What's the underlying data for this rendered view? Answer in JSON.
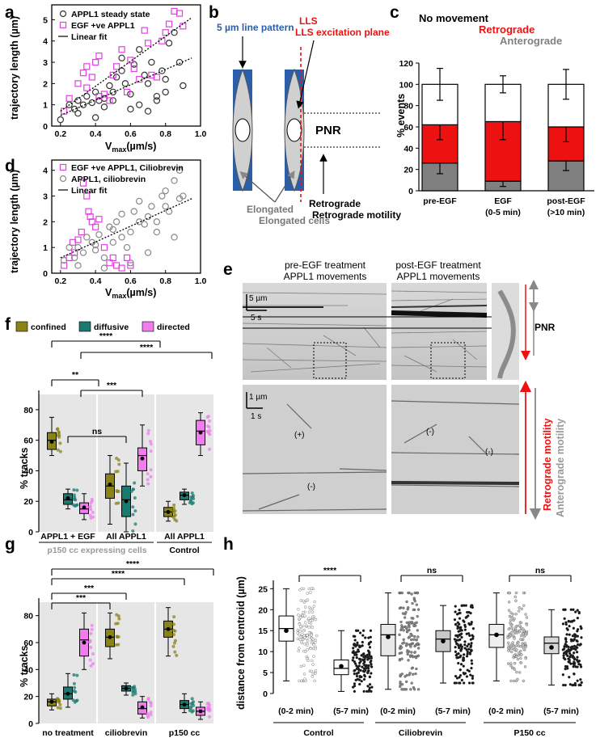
{
  "colors": {
    "magenta": "#e040e0",
    "pink": "#f07cf0",
    "olive": "#8a8416",
    "teal": "#1a7a70",
    "red": "#ee1111",
    "grey": "#808080",
    "blue": "#2b5ea8"
  },
  "panel_labels": {
    "a": "a",
    "b": "b",
    "c": "c",
    "d": "d",
    "e": "e",
    "f": "f",
    "g": "g",
    "h": "h"
  },
  "panel_a": {
    "xlabel": "V",
    "xlabel_sub": "max",
    "xlabel_unit": "(µm/s)",
    "ylabel": "trajectory length (µm)",
    "legend": [
      "APPL1 steady state",
      "EGF +ve APPL1",
      "Linear fit"
    ],
    "xticks": [
      "0.2",
      "0.4",
      "0.6",
      "0.8",
      "1.0"
    ],
    "yticks": [
      "0",
      "1",
      "2",
      "3",
      "4",
      "5"
    ]
  },
  "panel_b": {
    "line_pattern": "5 µm line pattern",
    "lls": "LLS excitation plane",
    "pnr": "PNR",
    "elongated": "Elongated cells",
    "retrograde": "Retrograde motility"
  },
  "panel_c": {
    "legend_none": "No movement",
    "legend_retro": "Retrograde",
    "legend_antero": "Anterograde",
    "ylabel": "% events",
    "yticks": [
      "0",
      "20",
      "40",
      "60",
      "80",
      "100",
      "120"
    ]
  },
  "panel_d": {
    "legend": [
      "EGF +ve APPL1, Ciliobrevin",
      "APPL1, ciliobrevin",
      "Linear fit"
    ],
    "ylabel": "trajectory length (µm)",
    "xlabel": "V",
    "xlabel_sub": "max",
    "xlabel_unit": "(µm/s)",
    "xticks": [
      "0.2",
      "0.4",
      "0.6",
      "0.8",
      "1.0"
    ],
    "yticks": [
      "0",
      "1",
      "2",
      "3",
      "4"
    ]
  },
  "panel_e": {
    "title_left": "pre-EGF treatment",
    "title_left2": "APPL1 movements",
    "title_right": "post-EGF treatment",
    "title_right2": "APPL1 movements",
    "scale_um": "5 µm",
    "scale_s": "5 s",
    "scale_um2": "1 µm",
    "scale_s2": "1 s",
    "pnr": "PNR",
    "plus": "(+)",
    "minus": "(-)",
    "retro": "Retrograde motility",
    "antero": "Anterograde motility"
  },
  "panel_f": {
    "legend": [
      "confined",
      "diffusive",
      "directed"
    ],
    "ylabel": "% tracks",
    "yticks": [
      "0",
      "20",
      "40",
      "60",
      "80"
    ],
    "groups": [
      "APPL1 + EGF",
      "All APPL1",
      "All APPL1"
    ],
    "subtitle": "p150 cc expressing cells",
    "control": "Control",
    "sig": [
      "****",
      "****",
      "**",
      "***",
      "ns"
    ]
  },
  "panel_g": {
    "ylabel": "% tracks",
    "yticks": [
      "0",
      "20",
      "40",
      "60",
      "80"
    ],
    "groups": [
      "no treatment",
      "ciliobrevin",
      "p150 cc"
    ],
    "sig": [
      "****",
      "****",
      "***",
      "***"
    ]
  },
  "panel_h": {
    "ylabel": "distance from centroid (µm)",
    "yticks": [
      "0",
      "5",
      "10",
      "15",
      "20",
      "25"
    ],
    "timepoints": [
      "(0-2 min)",
      "(5-7 min)"
    ],
    "groups": [
      "Control",
      "Ciliobrevin",
      "P150 cc"
    ],
    "sig": [
      "****",
      "ns",
      "ns"
    ]
  },
  "chart_data": [
    {
      "type": "scatter",
      "panel": "a",
      "xlabel": "Vmax (µm/s)",
      "ylabel": "trajectory length (µm)",
      "xlim": [
        0.15,
        1.0
      ],
      "ylim": [
        0,
        5.7
      ],
      "series": [
        {
          "name": "APPL1 steady state",
          "x": [
            0.2,
            0.25,
            0.28,
            0.3,
            0.33,
            0.35,
            0.38,
            0.4,
            0.42,
            0.45,
            0.48,
            0.5,
            0.52,
            0.55,
            0.57,
            0.6,
            0.62,
            0.65,
            0.68,
            0.7,
            0.72,
            0.75,
            0.78,
            0.8,
            0.82,
            0.85,
            0.88,
            0.3,
            0.45,
            0.6,
            0.75,
            0.9,
            0.55,
            0.65,
            0.8,
            0.5,
            0.4,
            0.7
          ],
          "y": [
            0.3,
            1.0,
            0.8,
            1.2,
            1.0,
            1.4,
            1.1,
            1.6,
            1.2,
            1.3,
            1.9,
            1.2,
            2.3,
            2.6,
            2.0,
            1.5,
            2.9,
            3.6,
            2.4,
            2.0,
            3.0,
            1.4,
            2.6,
            1.6,
            3.9,
            4.4,
            3.0,
            0.6,
            0.9,
            0.8,
            1.2,
            1.9,
            3.2,
            1.0,
            2.2,
            1.6,
            0.4,
            0.7
          ]
        },
        {
          "name": "EGF +ve APPL1",
          "x": [
            0.22,
            0.25,
            0.3,
            0.33,
            0.35,
            0.38,
            0.4,
            0.42,
            0.45,
            0.48,
            0.5,
            0.55,
            0.58,
            0.6,
            0.62,
            0.65,
            0.68,
            0.7,
            0.75,
            0.78,
            0.8,
            0.82,
            0.85,
            0.88,
            0.9,
            0.35,
            0.42,
            0.52,
            0.72
          ],
          "y": [
            0.7,
            1.3,
            2.0,
            2.5,
            2.8,
            2.3,
            3.0,
            3.3,
            1.5,
            1.2,
            2.4,
            3.6,
            1.6,
            3.1,
            2.7,
            2.2,
            4.5,
            3.9,
            2.3,
            4.0,
            4.4,
            4.8,
            5.4,
            5.3,
            4.7,
            1.8,
            1.4,
            2.8,
            2.4
          ]
        }
      ],
      "fits": [
        {
          "name": "Linear fit",
          "x": [
            0.2,
            0.95
          ],
          "y": [
            0.7,
            5.1
          ]
        },
        {
          "name": "Linear fit",
          "x": [
            0.2,
            0.95
          ],
          "y": [
            0.5,
            3.2
          ]
        }
      ]
    },
    {
      "type": "bar",
      "panel": "c",
      "categories": [
        "pre-EGF",
        "EGF\n(0-5 min)",
        "post-EGF\n(>10 min)"
      ],
      "ylabel": "% events",
      "ylim": [
        0,
        120
      ],
      "series": [
        {
          "name": "Anterograde",
          "values": [
            26,
            9,
            28
          ],
          "err": [
            10,
            5,
            9
          ]
        },
        {
          "name": "Retrograde",
          "values": [
            36,
            56,
            32
          ],
          "err": [
            14,
            17,
            14
          ]
        },
        {
          "name": "No movement",
          "values": [
            38,
            35,
            40
          ],
          "err": [
            15,
            8,
            14
          ]
        }
      ]
    },
    {
      "type": "scatter",
      "panel": "d",
      "xlabel": "Vmax (µm/s)",
      "ylabel": "trajectory length (µm)",
      "xlim": [
        0.15,
        1.0
      ],
      "ylim": [
        0,
        4.4
      ],
      "series": [
        {
          "name": "EGF +ve APPL1, Ciliobrevin",
          "x": [
            0.22,
            0.25,
            0.27,
            0.28,
            0.3,
            0.33,
            0.35,
            0.37,
            0.38,
            0.4,
            0.42,
            0.45,
            0.48,
            0.5,
            0.52,
            0.55,
            0.58,
            0.6,
            0.32,
            0.36
          ],
          "y": [
            0.3,
            0.6,
            1.2,
            0.8,
            1.3,
            3.5,
            3.0,
            2.2,
            2.0,
            1.8,
            2.1,
            1.0,
            0.4,
            0.6,
            0.3,
            0.2,
            0.6,
            0.3,
            1.6,
            2.4
          ]
        },
        {
          "name": "APPL1, ciliobrevin",
          "x": [
            0.22,
            0.25,
            0.28,
            0.3,
            0.33,
            0.35,
            0.38,
            0.4,
            0.42,
            0.45,
            0.48,
            0.5,
            0.52,
            0.55,
            0.58,
            0.6,
            0.62,
            0.65,
            0.68,
            0.7,
            0.72,
            0.75,
            0.78,
            0.8,
            0.82,
            0.85,
            0.88,
            0.9,
            0.3,
            0.45,
            0.6,
            0.75,
            0.85,
            0.65,
            0.5,
            0.4,
            0.55,
            0.7,
            0.8,
            0.88
          ],
          "y": [
            0.5,
            1.0,
            0.6,
            1.0,
            0.8,
            1.4,
            1.2,
            0.9,
            1.5,
            0.6,
            1.8,
            1.2,
            2.0,
            1.4,
            1.0,
            1.6,
            2.4,
            2.8,
            1.9,
            2.2,
            2.6,
            2.0,
            3.0,
            3.2,
            2.4,
            3.6,
            2.9,
            3.0,
            0.3,
            0.2,
            0.4,
            1.6,
            1.4,
            2.0,
            1.7,
            1.1,
            2.3,
            0.8,
            2.6,
            4.0
          ]
        }
      ],
      "fits": [
        {
          "name": "Linear fit",
          "x": [
            0.2,
            0.95
          ],
          "y": [
            0.6,
            2.9
          ]
        }
      ]
    },
    {
      "type": "box",
      "panel": "f",
      "ylabel": "% tracks",
      "ylim": [
        0,
        90
      ],
      "groups": [
        {
          "name": "APPL1 + EGF",
          "boxes": [
            {
              "cat": "confined",
              "q1": 54,
              "med": 60,
              "q3": 65,
              "mean": 59,
              "lo": 50,
              "hi": 75
            },
            {
              "cat": "diffusive",
              "q1": 18,
              "med": 21,
              "q3": 25,
              "mean": 22,
              "lo": 15,
              "hi": 28
            },
            {
              "cat": "directed",
              "q1": 12,
              "med": 15,
              "q3": 19,
              "mean": 16,
              "lo": 8,
              "hi": 25
            }
          ]
        },
        {
          "name": "All APPL1",
          "boxes": [
            {
              "cat": "confined",
              "q1": 22,
              "med": 30,
              "q3": 38,
              "mean": 31,
              "lo": 5,
              "hi": 50
            },
            {
              "cat": "diffusive",
              "q1": 10,
              "med": 21,
              "q3": 30,
              "mean": 20,
              "lo": 0,
              "hi": 45
            },
            {
              "cat": "directed",
              "q1": 40,
              "med": 50,
              "q3": 55,
              "mean": 48,
              "lo": 30,
              "hi": 70
            }
          ]
        },
        {
          "name": "All APPL1 (Control)",
          "boxes": [
            {
              "cat": "confined",
              "q1": 10,
              "med": 13,
              "q3": 16,
              "mean": 13,
              "lo": 7,
              "hi": 20
            },
            {
              "cat": "diffusive",
              "q1": 21,
              "med": 24,
              "q3": 26,
              "mean": 24,
              "lo": 18,
              "hi": 28
            },
            {
              "cat": "directed",
              "q1": 57,
              "med": 66,
              "q3": 73,
              "mean": 65,
              "lo": 50,
              "hi": 78
            }
          ]
        }
      ]
    },
    {
      "type": "box",
      "panel": "g",
      "ylabel": "% tracks",
      "ylim": [
        0,
        90
      ],
      "groups": [
        {
          "name": "no treatment",
          "boxes": [
            {
              "cat": "confined",
              "q1": 13,
              "med": 16,
              "q3": 18,
              "mean": 16,
              "lo": 10,
              "hi": 22
            },
            {
              "cat": "diffusive",
              "q1": 18,
              "med": 22,
              "q3": 27,
              "mean": 22,
              "lo": 12,
              "hi": 37
            },
            {
              "cat": "directed",
              "q1": 50,
              "med": 62,
              "q3": 70,
              "mean": 60,
              "lo": 40,
              "hi": 82
            }
          ]
        },
        {
          "name": "ciliobrevin",
          "boxes": [
            {
              "cat": "confined",
              "q1": 57,
              "med": 64,
              "q3": 70,
              "mean": 64,
              "lo": 48,
              "hi": 82
            },
            {
              "cat": "diffusive",
              "q1": 24,
              "med": 26,
              "q3": 28,
              "mean": 26,
              "lo": 21,
              "hi": 30
            },
            {
              "cat": "directed",
              "q1": 7,
              "med": 11,
              "q3": 16,
              "mean": 12,
              "lo": 4,
              "hi": 20
            }
          ]
        },
        {
          "name": "p150 cc",
          "boxes": [
            {
              "cat": "confined",
              "q1": 64,
              "med": 70,
              "q3": 76,
              "mean": 70,
              "lo": 50,
              "hi": 86
            },
            {
              "cat": "diffusive",
              "q1": 11,
              "med": 14,
              "q3": 17,
              "mean": 14,
              "lo": 8,
              "hi": 22
            },
            {
              "cat": "directed",
              "q1": 6,
              "med": 9,
              "q3": 12,
              "mean": 9,
              "lo": 3,
              "hi": 16
            }
          ]
        }
      ]
    },
    {
      "type": "box",
      "panel": "h",
      "ylabel": "distance from centroid (µm)",
      "ylim": [
        0,
        27
      ],
      "groups": [
        {
          "name": "Control",
          "boxes": [
            {
              "cat": "0-2 min",
              "q1": 12.5,
              "med": 15.5,
              "q3": 18.5,
              "mean": 15,
              "lo": 3,
              "hi": 25
            },
            {
              "cat": "5-7 min",
              "q1": 4.5,
              "med": 6,
              "q3": 8,
              "mean": 6.5,
              "lo": 0.5,
              "hi": 15
            }
          ]
        },
        {
          "name": "Ciliobrevin",
          "boxes": [
            {
              "cat": "0-2 min",
              "q1": 9,
              "med": 14,
              "q3": 16.5,
              "mean": 13.5,
              "lo": 1,
              "hi": 24
            },
            {
              "cat": "5-7 min",
              "q1": 10,
              "med": 13,
              "q3": 15,
              "mean": 12.5,
              "lo": 2.5,
              "hi": 21
            }
          ]
        },
        {
          "name": "P150 cc",
          "boxes": [
            {
              "cat": "0-2 min",
              "q1": 11,
              "med": 14,
              "q3": 16.5,
              "mean": 14,
              "lo": 3,
              "hi": 24
            },
            {
              "cat": "5-7 min",
              "q1": 9.5,
              "med": 12,
              "q3": 13.5,
              "mean": 11,
              "lo": 2,
              "hi": 20
            }
          ]
        }
      ]
    }
  ]
}
